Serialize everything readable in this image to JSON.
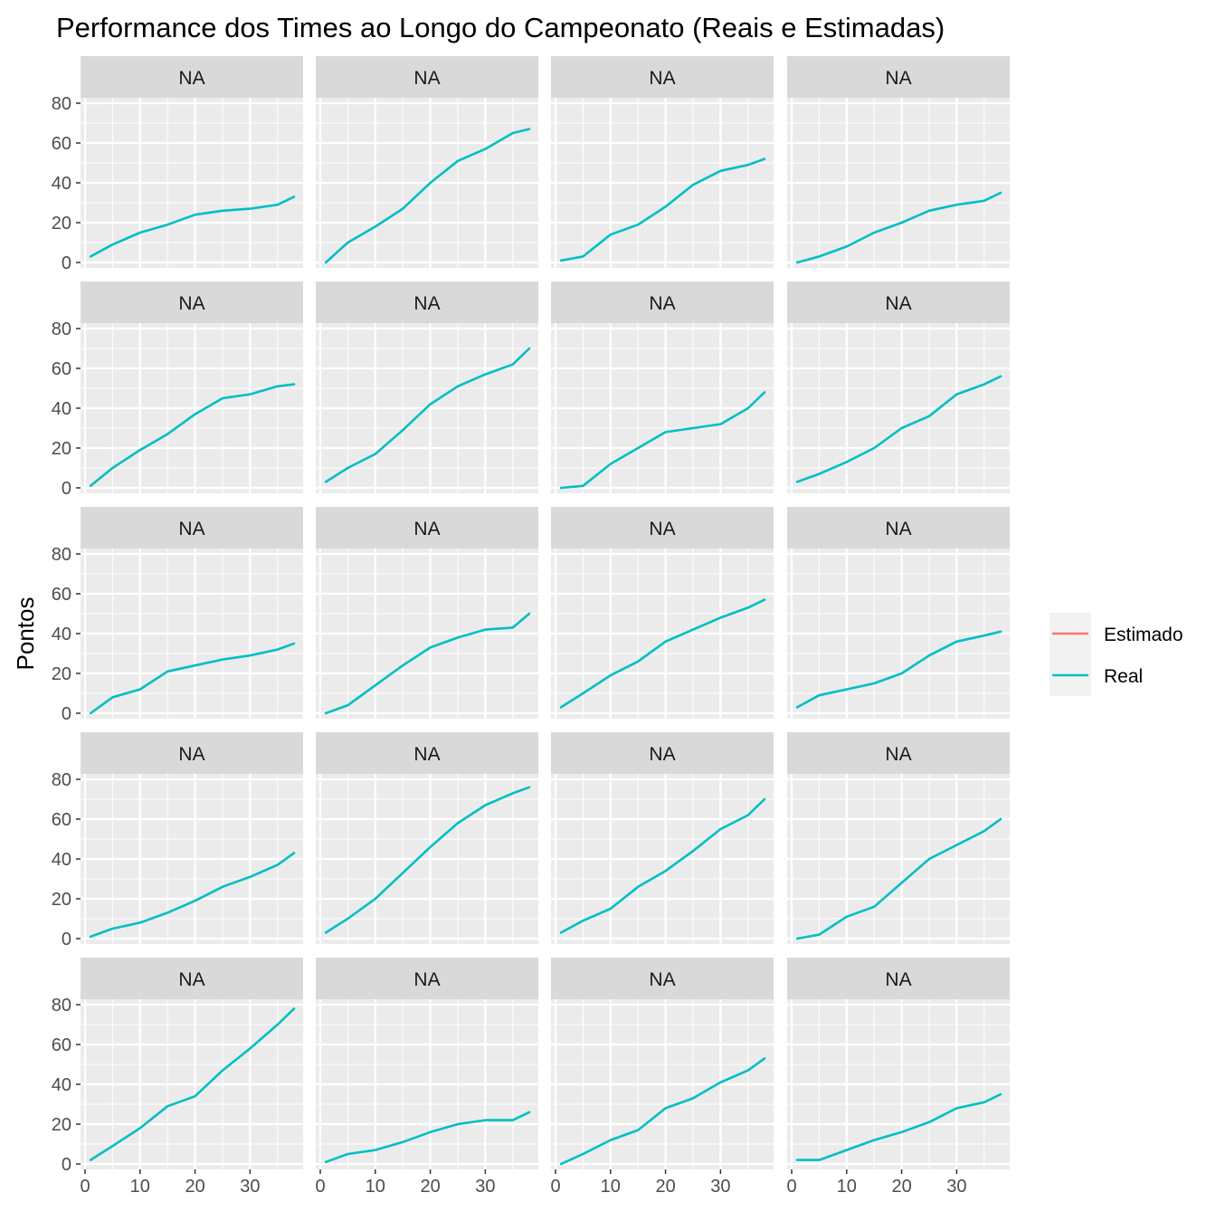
{
  "chart_data": {
    "type": "line",
    "title": "Performance dos Times ao Longo do Campeonato (Reais e Estimadas)",
    "xlabel": "",
    "ylabel": "Pontos",
    "xlim": [
      0,
      38
    ],
    "ylim": [
      0,
      80
    ],
    "x_ticks": [
      0,
      10,
      20,
      30
    ],
    "y_ticks": [
      0,
      20,
      40,
      60,
      80
    ],
    "grid": true,
    "legend": {
      "position": "right",
      "entries": [
        {
          "label": "Estimado",
          "color": "#F8766D"
        },
        {
          "label": "Real",
          "color": "#00BFC4"
        }
      ]
    },
    "panels": [
      {
        "label": "NA",
        "series": [
          {
            "name": "Real",
            "color": "#00BFC4",
            "x": [
              1,
              5,
              10,
              15,
              20,
              25,
              30,
              35,
              38
            ],
            "y": [
              3,
              9,
              15,
              19,
              24,
              26,
              27,
              29,
              33
            ]
          }
        ]
      },
      {
        "label": "NA",
        "series": [
          {
            "name": "Real",
            "color": "#00BFC4",
            "x": [
              1,
              5,
              10,
              15,
              20,
              25,
              30,
              35,
              38
            ],
            "y": [
              0,
              10,
              18,
              27,
              40,
              51,
              57,
              65,
              67
            ]
          }
        ]
      },
      {
        "label": "NA",
        "series": [
          {
            "name": "Real",
            "color": "#00BFC4",
            "x": [
              1,
              5,
              10,
              15,
              20,
              25,
              30,
              35,
              38
            ],
            "y": [
              1,
              3,
              14,
              19,
              28,
              39,
              46,
              49,
              52
            ]
          }
        ]
      },
      {
        "label": "NA",
        "series": [
          {
            "name": "Real",
            "color": "#00BFC4",
            "x": [
              1,
              5,
              10,
              15,
              20,
              25,
              30,
              35,
              38
            ],
            "y": [
              0,
              3,
              8,
              15,
              20,
              26,
              29,
              31,
              35
            ]
          }
        ]
      },
      {
        "label": "NA",
        "series": [
          {
            "name": "Real",
            "color": "#00BFC4",
            "x": [
              1,
              5,
              10,
              15,
              20,
              25,
              30,
              35,
              38
            ],
            "y": [
              1,
              10,
              19,
              27,
              37,
              45,
              47,
              51,
              52
            ]
          }
        ]
      },
      {
        "label": "NA",
        "series": [
          {
            "name": "Real",
            "color": "#00BFC4",
            "x": [
              1,
              5,
              10,
              15,
              20,
              25,
              30,
              35,
              38
            ],
            "y": [
              3,
              10,
              17,
              29,
              42,
              51,
              57,
              62,
              70
            ]
          }
        ]
      },
      {
        "label": "NA",
        "series": [
          {
            "name": "Real",
            "color": "#00BFC4",
            "x": [
              1,
              5,
              10,
              15,
              20,
              25,
              30,
              35,
              38
            ],
            "y": [
              0,
              1,
              12,
              20,
              28,
              30,
              32,
              40,
              48
            ]
          }
        ]
      },
      {
        "label": "NA",
        "series": [
          {
            "name": "Real",
            "color": "#00BFC4",
            "x": [
              1,
              5,
              10,
              15,
              20,
              25,
              30,
              35,
              38
            ],
            "y": [
              3,
              7,
              13,
              20,
              30,
              36,
              47,
              52,
              56
            ]
          }
        ]
      },
      {
        "label": "NA",
        "series": [
          {
            "name": "Real",
            "color": "#00BFC4",
            "x": [
              1,
              5,
              10,
              15,
              20,
              25,
              30,
              35,
              38
            ],
            "y": [
              0,
              8,
              12,
              21,
              24,
              27,
              29,
              32,
              35
            ]
          }
        ]
      },
      {
        "label": "NA",
        "series": [
          {
            "name": "Real",
            "color": "#00BFC4",
            "x": [
              1,
              5,
              10,
              15,
              20,
              25,
              30,
              35,
              38
            ],
            "y": [
              0,
              4,
              14,
              24,
              33,
              38,
              42,
              43,
              50
            ]
          }
        ]
      },
      {
        "label": "NA",
        "series": [
          {
            "name": "Real",
            "color": "#00BFC4",
            "x": [
              1,
              5,
              10,
              15,
              20,
              25,
              30,
              35,
              38
            ],
            "y": [
              3,
              10,
              19,
              26,
              36,
              42,
              48,
              53,
              57
            ]
          }
        ]
      },
      {
        "label": "NA",
        "series": [
          {
            "name": "Real",
            "color": "#00BFC4",
            "x": [
              1,
              5,
              10,
              15,
              20,
              25,
              30,
              35,
              38
            ],
            "y": [
              3,
              9,
              12,
              15,
              20,
              29,
              36,
              39,
              41
            ]
          }
        ]
      },
      {
        "label": "NA",
        "series": [
          {
            "name": "Real",
            "color": "#00BFC4",
            "x": [
              1,
              5,
              10,
              15,
              20,
              25,
              30,
              35,
              38
            ],
            "y": [
              1,
              5,
              8,
              13,
              19,
              26,
              31,
              37,
              43
            ]
          }
        ]
      },
      {
        "label": "NA",
        "series": [
          {
            "name": "Real",
            "color": "#00BFC4",
            "x": [
              1,
              5,
              10,
              15,
              20,
              25,
              30,
              35,
              38
            ],
            "y": [
              3,
              10,
              20,
              33,
              46,
              58,
              67,
              73,
              76
            ]
          }
        ]
      },
      {
        "label": "NA",
        "series": [
          {
            "name": "Real",
            "color": "#00BFC4",
            "x": [
              1,
              5,
              10,
              15,
              20,
              25,
              30,
              35,
              38
            ],
            "y": [
              3,
              9,
              15,
              26,
              34,
              44,
              55,
              62,
              70
            ]
          }
        ]
      },
      {
        "label": "NA",
        "series": [
          {
            "name": "Real",
            "color": "#00BFC4",
            "x": [
              1,
              5,
              10,
              15,
              20,
              25,
              30,
              35,
              38
            ],
            "y": [
              0,
              2,
              11,
              16,
              28,
              40,
              47,
              54,
              60
            ]
          }
        ]
      },
      {
        "label": "NA",
        "series": [
          {
            "name": "Real",
            "color": "#00BFC4",
            "x": [
              1,
              5,
              10,
              15,
              20,
              25,
              30,
              35,
              38
            ],
            "y": [
              2,
              9,
              18,
              29,
              34,
              47,
              58,
              70,
              78
            ]
          }
        ]
      },
      {
        "label": "NA",
        "series": [
          {
            "name": "Real",
            "color": "#00BFC4",
            "x": [
              1,
              5,
              10,
              15,
              20,
              25,
              30,
              35,
              38
            ],
            "y": [
              1,
              5,
              7,
              11,
              16,
              20,
              22,
              22,
              26
            ]
          }
        ]
      },
      {
        "label": "NA",
        "series": [
          {
            "name": "Real",
            "color": "#00BFC4",
            "x": [
              1,
              5,
              10,
              15,
              20,
              25,
              30,
              35,
              38
            ],
            "y": [
              0,
              5,
              12,
              17,
              28,
              33,
              41,
              47,
              53
            ]
          }
        ]
      },
      {
        "label": "NA",
        "series": [
          {
            "name": "Real",
            "color": "#00BFC4",
            "x": [
              1,
              5,
              10,
              15,
              20,
              25,
              30,
              35,
              38
            ],
            "y": [
              2,
              2,
              7,
              12,
              16,
              21,
              28,
              31,
              35
            ]
          }
        ]
      }
    ]
  }
}
